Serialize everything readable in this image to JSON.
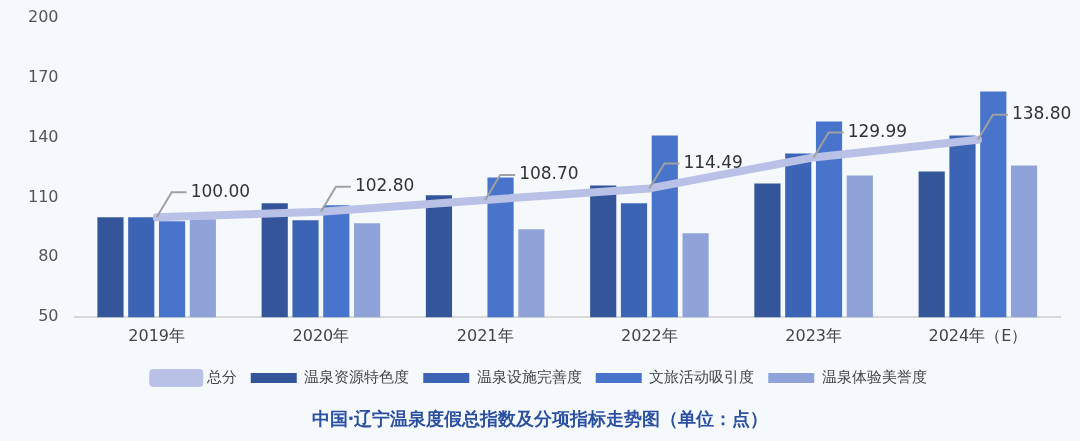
{
  "chart_data": {
    "type": "bar",
    "title": "中国·辽宁温泉度假总指数及分项指标走势图（单位：点）",
    "categories": [
      "2019年",
      "2020年",
      "2021年",
      "2022年",
      "2023年",
      "2024年（E）"
    ],
    "series": [
      {
        "name": "温泉资源特色度",
        "color": "#34559a",
        "values": [
          100,
          107,
          111,
          116,
          117,
          123
        ]
      },
      {
        "name": "温泉设施完善度",
        "color": "#3c64b4",
        "values": [
          100,
          98.5,
          null,
          107,
          132,
          141
        ]
      },
      {
        "name": "文旅活动吸引度",
        "color": "#4874cc",
        "values": [
          98,
          106,
          120,
          141,
          148,
          163
        ]
      },
      {
        "name": "温泉体验美誉度",
        "color": "#8fa3d9",
        "values": [
          99,
          97,
          94,
          92,
          121,
          126
        ]
      },
      {
        "name": "总分",
        "type": "line",
        "color": "#b9c1e6",
        "values": [
          100.0,
          102.8,
          108.7,
          114.49,
          129.99,
          138.8
        ],
        "value_labels": [
          "100.00",
          "102.80",
          "108.70",
          "114.49",
          "129.99",
          "138.80"
        ]
      }
    ],
    "ylim": [
      50,
      200
    ],
    "yticks": [
      50,
      80,
      110,
      140,
      170,
      200
    ],
    "grid": false,
    "legend": "bottom",
    "marker": "none"
  }
}
